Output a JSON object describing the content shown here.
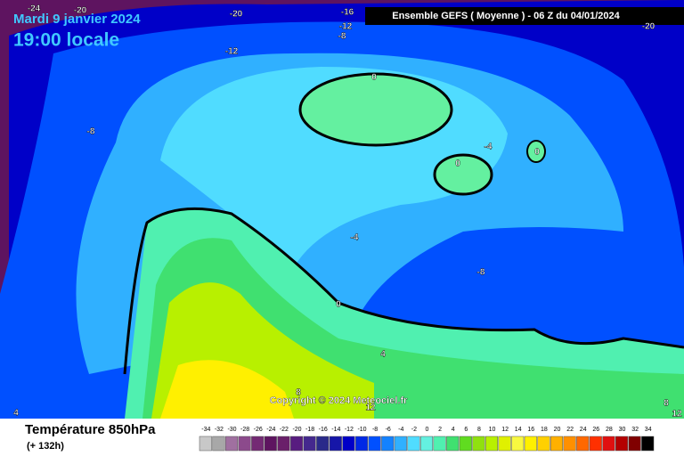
{
  "header": {
    "date": "Mardi 9 janvier 2024",
    "time": "19:00 locale",
    "run": "Ensemble GEFS  ( Moyenne )  -  06 Z du 04/01/2024"
  },
  "map": {
    "copyright": "Copyright © 2024 Meteociel.fr",
    "contour_labels": [
      "-24",
      "-20",
      "-20",
      "-16",
      "-12",
      "-8",
      "-20",
      "-12",
      "-8",
      "0",
      "-4",
      "0",
      "0",
      "-4",
      "-8",
      "0",
      "4",
      "8",
      "12",
      "4",
      "8",
      "12"
    ]
  },
  "legend": {
    "title": "Température 850hPa",
    "subtitle": "(+ 132h)",
    "steps": [
      {
        "label": "-34",
        "color": "#c8c8c8"
      },
      {
        "label": "-32",
        "color": "#a8a8a8"
      },
      {
        "label": "-30",
        "color": "#a070a0"
      },
      {
        "label": "-28",
        "color": "#8c4a8c"
      },
      {
        "label": "-26",
        "color": "#742a74"
      },
      {
        "label": "-24",
        "color": "#5e1460"
      },
      {
        "label": "-22",
        "color": "#6a1f6a"
      },
      {
        "label": "-20",
        "color": "#581c80"
      },
      {
        "label": "-18",
        "color": "#44288e"
      },
      {
        "label": "-16",
        "color": "#2a2a8a"
      },
      {
        "label": "-14",
        "color": "#1616a8"
      },
      {
        "label": "-12",
        "color": "#0000c8"
      },
      {
        "label": "-10",
        "color": "#0028e6"
      },
      {
        "label": "-8",
        "color": "#0050ff"
      },
      {
        "label": "-6",
        "color": "#1482ff"
      },
      {
        "label": "-4",
        "color": "#30b0ff"
      },
      {
        "label": "-2",
        "color": "#50dcff"
      },
      {
        "label": "0",
        "color": "#64f0e0"
      },
      {
        "label": "2",
        "color": "#50f0b0"
      },
      {
        "label": "4",
        "color": "#40e070"
      },
      {
        "label": "6",
        "color": "#60dc20"
      },
      {
        "label": "8",
        "color": "#90e010"
      },
      {
        "label": "10",
        "color": "#b8f000"
      },
      {
        "label": "12",
        "color": "#e0f000"
      },
      {
        "label": "14",
        "color": "#f8f840"
      },
      {
        "label": "16",
        "color": "#fff000"
      },
      {
        "label": "18",
        "color": "#ffd000"
      },
      {
        "label": "20",
        "color": "#ffb000"
      },
      {
        "label": "22",
        "color": "#ff9000"
      },
      {
        "label": "24",
        "color": "#ff6800"
      },
      {
        "label": "26",
        "color": "#ff3000"
      },
      {
        "label": "28",
        "color": "#e01010"
      },
      {
        "label": "30",
        "color": "#b40000"
      },
      {
        "label": "32",
        "color": "#800000"
      },
      {
        "label": "34",
        "color": "#000000"
      }
    ]
  }
}
